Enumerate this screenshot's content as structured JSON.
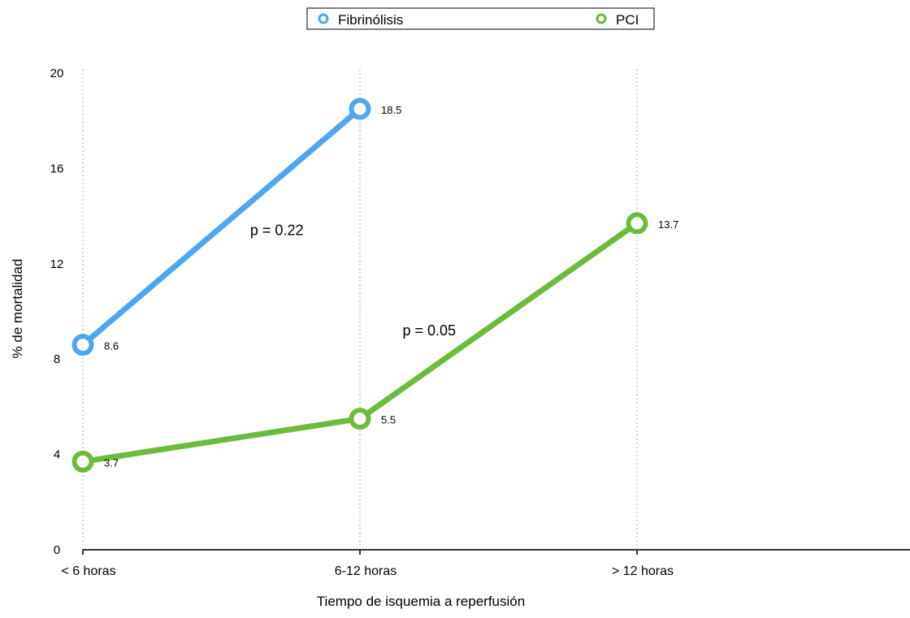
{
  "chart_data": {
    "type": "line",
    "title": "",
    "xlabel": "Tiempo de isquemia a reperfusión",
    "ylabel": "% de mortalidad",
    "categories": [
      "< 6 horas",
      "6-12 horas",
      "> 12 horas"
    ],
    "ylim": [
      0,
      20
    ],
    "yticks": [
      0,
      4,
      8,
      12,
      16,
      20
    ],
    "grid": "vertical-dotted",
    "legend_position": "top-center",
    "series": [
      {
        "name": "Fibrinólisis",
        "color": "#4da6f0",
        "values": [
          8.6,
          18.5,
          null
        ],
        "labels": [
          "8.6",
          "18.5",
          ""
        ]
      },
      {
        "name": "PCI",
        "color": "#6cbb3c",
        "values": [
          3.7,
          5.5,
          13.7
        ],
        "labels": [
          "3.7",
          "5.5",
          "13.7"
        ]
      }
    ],
    "annotations": [
      {
        "text": "p = 0.22",
        "x": 1.4,
        "y": 13.2
      },
      {
        "text": "p = 0.05",
        "x": 2.5,
        "y": 9.0
      }
    ]
  }
}
